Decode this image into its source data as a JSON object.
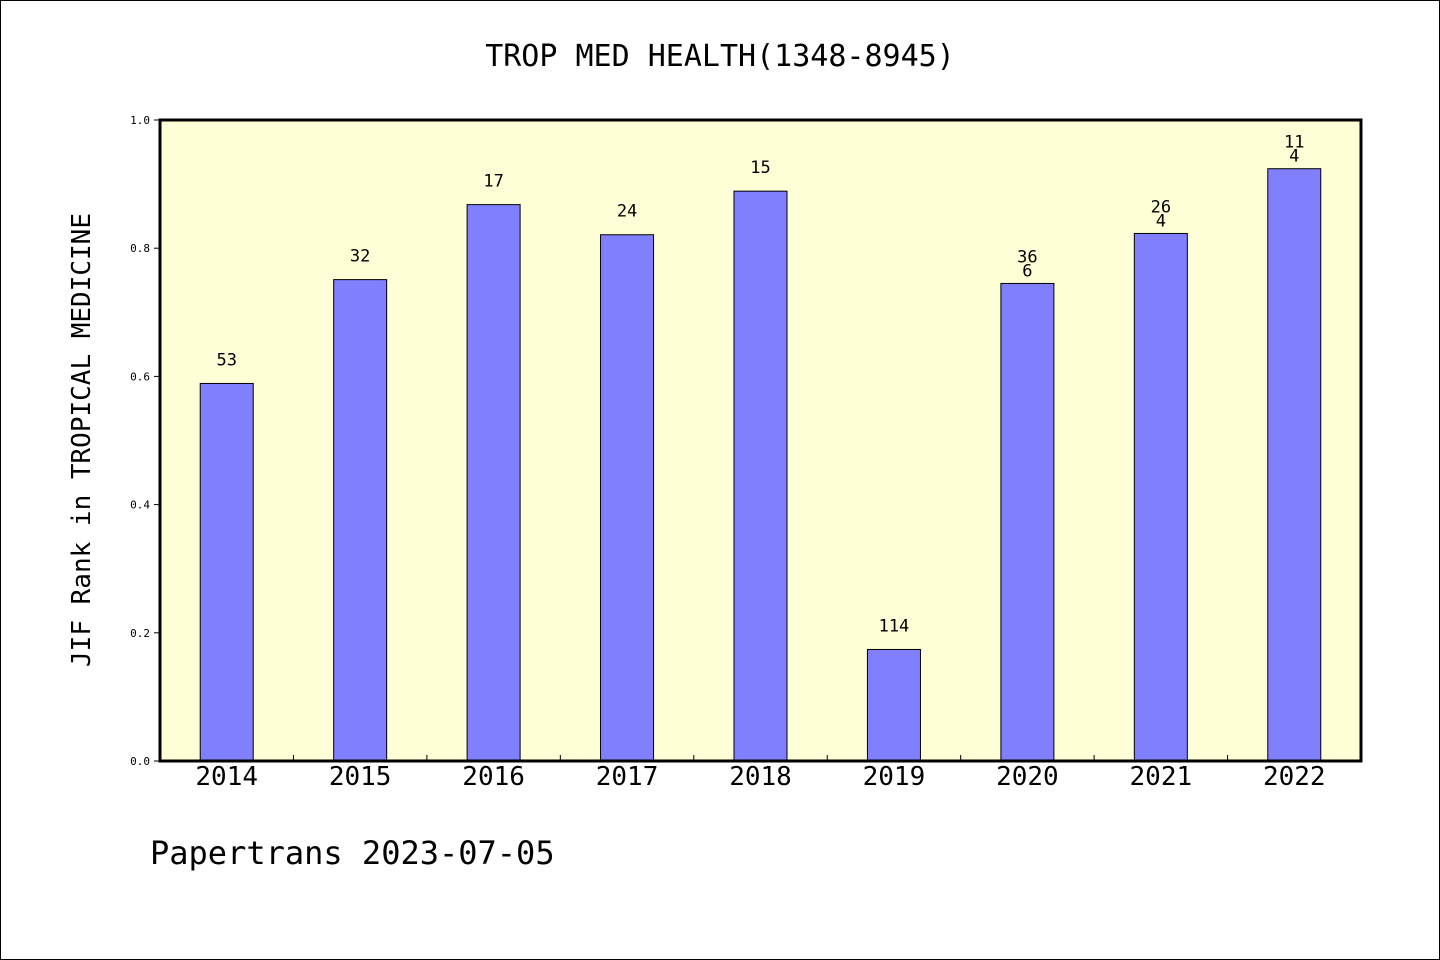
{
  "chart_data": {
    "type": "bar",
    "title": "TROP MED HEALTH(1348-8945)",
    "xlabel": "",
    "ylabel": "JIF Rank in TROPICAL MEDICINE",
    "ylim": [
      0,
      1.0
    ],
    "yticks": [
      "0.0",
      "0.2",
      "0.4",
      "0.6",
      "0.8",
      "1.0"
    ],
    "categories": [
      "2014",
      "2015",
      "2016",
      "2017",
      "2018",
      "2019",
      "2020",
      "2021",
      "2022"
    ],
    "values": [
      0.589,
      0.751,
      0.868,
      0.821,
      0.889,
      0.174,
      0.745,
      0.823,
      0.924
    ],
    "labels": [
      "53",
      "32",
      "17",
      "24",
      "15",
      "114",
      "36\n6",
      "26\n4",
      "11\n4"
    ],
    "grid": false,
    "colors": {
      "plot_background": "#ffffd7",
      "bar_fill": "#8080ff",
      "bar_stroke": "#000000"
    }
  },
  "footer": "Papertrans 2023-07-05"
}
